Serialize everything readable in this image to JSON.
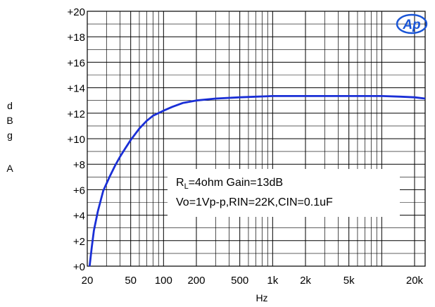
{
  "chart_data": {
    "type": "line",
    "title": "",
    "xlabel": "Hz",
    "ylabel": [
      "d",
      "B",
      "g",
      "A"
    ],
    "x_scale": "log",
    "xlim": [
      20,
      25000
    ],
    "ylim": [
      0,
      20
    ],
    "grid": true,
    "x_ticks": [
      {
        "value": 20,
        "label": "20"
      },
      {
        "value": 50,
        "label": "50"
      },
      {
        "value": 100,
        "label": "100"
      },
      {
        "value": 200,
        "label": "200"
      },
      {
        "value": 500,
        "label": "500"
      },
      {
        "value": 1000,
        "label": "1k"
      },
      {
        "value": 2000,
        "label": "2k"
      },
      {
        "value": 5000,
        "label": "5k"
      },
      {
        "value": 20000,
        "label": "20k"
      }
    ],
    "y_ticks": [
      {
        "value": 0,
        "label": "+0"
      },
      {
        "value": 2,
        "label": "+2"
      },
      {
        "value": 4,
        "label": "+4"
      },
      {
        "value": 6,
        "label": "+6"
      },
      {
        "value": 8,
        "label": "+8"
      },
      {
        "value": 10,
        "label": "+10"
      },
      {
        "value": 12,
        "label": "+12"
      },
      {
        "value": 14,
        "label": "+14"
      },
      {
        "value": 16,
        "label": "+16"
      },
      {
        "value": 18,
        "label": "+18"
      },
      {
        "value": 20,
        "label": "+20"
      }
    ],
    "series": [
      {
        "color": "#1a2fd6",
        "points": [
          [
            21,
            0.0
          ],
          [
            22,
            1.5
          ],
          [
            23,
            2.8
          ],
          [
            25,
            4.3
          ],
          [
            28,
            5.9
          ],
          [
            32,
            7.0
          ],
          [
            36,
            7.9
          ],
          [
            40,
            8.6
          ],
          [
            45,
            9.3
          ],
          [
            50,
            9.9
          ],
          [
            60,
            10.8
          ],
          [
            70,
            11.4
          ],
          [
            80,
            11.8
          ],
          [
            100,
            12.2
          ],
          [
            120,
            12.5
          ],
          [
            150,
            12.8
          ],
          [
            200,
            13.0
          ],
          [
            300,
            13.15
          ],
          [
            500,
            13.25
          ],
          [
            700,
            13.3
          ],
          [
            1000,
            13.35
          ],
          [
            2000,
            13.35
          ],
          [
            5000,
            13.35
          ],
          [
            10000,
            13.35
          ],
          [
            15000,
            13.3
          ],
          [
            20000,
            13.25
          ],
          [
            25000,
            13.15
          ]
        ]
      }
    ],
    "annotations": {
      "line1_main": "R",
      "line1_sub": "L",
      "line1_rest": "=4ohm Gain=13dB",
      "line2": "Vo=1Vp-p,RIN=22K,CIN=0.1uF"
    },
    "logo": "Ap"
  }
}
